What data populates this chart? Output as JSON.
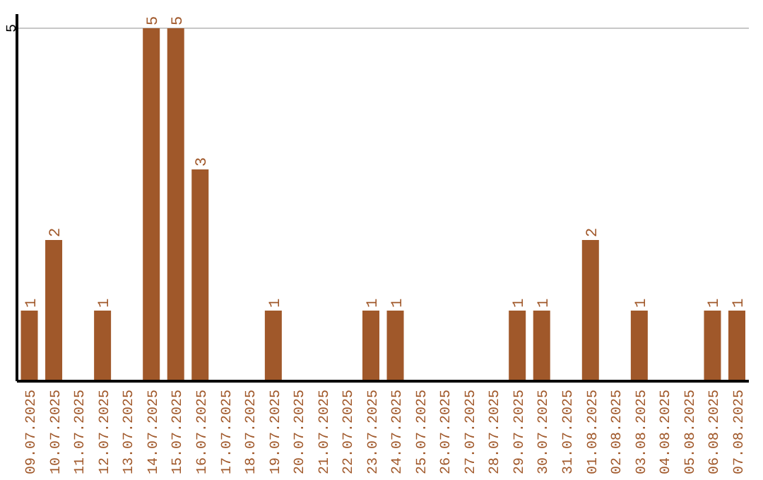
{
  "chart_data": {
    "type": "bar",
    "categories": [
      "09.07.2025",
      "10.07.2025",
      "11.07.2025",
      "12.07.2025",
      "13.07.2025",
      "14.07.2025",
      "15.07.2025",
      "16.07.2025",
      "17.07.2025",
      "18.07.2025",
      "19.07.2025",
      "20.07.2025",
      "21.07.2025",
      "22.07.2025",
      "23.07.2025",
      "24.07.2025",
      "25.07.2025",
      "26.07.2025",
      "27.07.2025",
      "28.07.2025",
      "29.07.2025",
      "30.07.2025",
      "31.07.2025",
      "01.08.2025",
      "02.08.2025",
      "03.08.2025",
      "04.08.2025",
      "05.08.2025",
      "06.08.2025",
      "07.08.2025"
    ],
    "values": [
      1,
      2,
      0,
      1,
      0,
      5,
      5,
      3,
      0,
      0,
      1,
      0,
      0,
      0,
      1,
      1,
      0,
      0,
      0,
      0,
      1,
      1,
      0,
      2,
      0,
      1,
      0,
      0,
      1,
      1
    ],
    "value_labels": [
      "1",
      "2",
      null,
      "1",
      null,
      "5",
      "5",
      "3",
      null,
      null,
      "1",
      null,
      null,
      null,
      "1",
      "1",
      null,
      null,
      null,
      null,
      "1",
      "1",
      null,
      "2",
      null,
      "1",
      null,
      null,
      "1",
      "1"
    ],
    "color": "#a0582a",
    "ylim": [
      0,
      5.2
    ],
    "yticks": [
      5
    ],
    "grid": "y"
  }
}
